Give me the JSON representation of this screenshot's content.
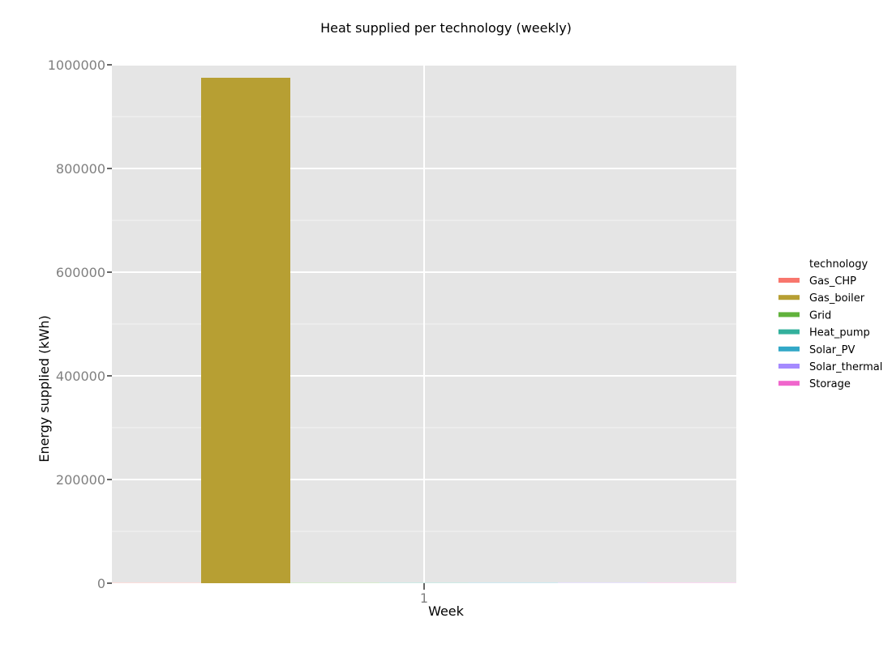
{
  "chart_data": {
    "type": "bar",
    "title": "Heat supplied per technology (weekly)",
    "xlabel": "Week",
    "ylabel": "Energy supplied (kWh)",
    "categories": [
      "1"
    ],
    "ylim": [
      0,
      1000000
    ],
    "yticks": [
      "0",
      "200000",
      "400000",
      "600000",
      "800000",
      "1000000"
    ],
    "grid": true,
    "position": "dodge",
    "legend": {
      "title": "technology",
      "placement": "right"
    },
    "series": [
      {
        "name": "Gas_CHP",
        "color": "#F8766D",
        "values": [
          0
        ]
      },
      {
        "name": "Gas_boiler",
        "color": "#B79F33",
        "values": [
          975000
        ]
      },
      {
        "name": "Grid",
        "color": "#61B23B",
        "values": [
          0
        ]
      },
      {
        "name": "Heat_pump",
        "color": "#33B09C",
        "values": [
          0
        ]
      },
      {
        "name": "Solar_PV",
        "color": "#32A8C7",
        "values": [
          0
        ]
      },
      {
        "name": "Solar_thermal",
        "color": "#A58AFF",
        "values": [
          0
        ]
      },
      {
        "name": "Storage",
        "color": "#F066CC",
        "values": [
          0
        ]
      }
    ]
  }
}
